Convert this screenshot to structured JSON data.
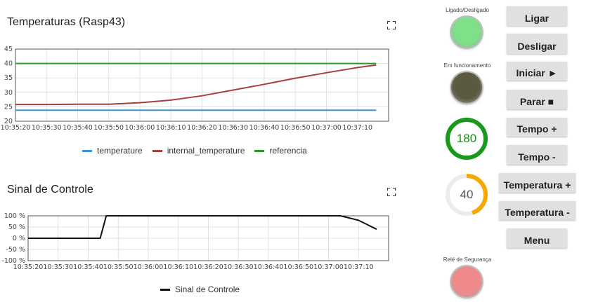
{
  "panel1": {
    "title": "Temperaturas (Rasp43)",
    "legend": [
      {
        "name": "temperature",
        "color": "#3b93d8"
      },
      {
        "name": "internal_temperature",
        "color": "#a84040"
      },
      {
        "name": "referencia",
        "color": "#2a9a2a"
      }
    ]
  },
  "panel2": {
    "title": "Sinal de Controle",
    "legend": [
      {
        "name": "Sinal de Controle",
        "color": "#111111"
      }
    ]
  },
  "chart_data": [
    {
      "type": "line",
      "title": "Temperaturas (Rasp43)",
      "xlabel": "",
      "ylabel": "",
      "ylim": [
        20,
        45
      ],
      "yticks": [
        "45",
        "40",
        "35",
        "30",
        "25",
        "20"
      ],
      "xticks": [
        "10:35:20",
        "10:35:30",
        "10:35:40",
        "10:35:50",
        "10:36:00",
        "10:36:10",
        "10:36:20",
        "10:36:30",
        "10:36:40",
        "10:36:50",
        "10:37:00",
        "10:37:10"
      ],
      "grid": true,
      "legend_position": "bottom",
      "x_seconds": [
        0,
        10,
        20,
        30,
        40,
        50,
        60,
        70,
        80,
        90,
        100,
        110,
        116
      ],
      "series": [
        {
          "name": "temperature",
          "color": "#3b93d8",
          "values": [
            23.8,
            23.8,
            23.8,
            23.8,
            23.8,
            23.8,
            23.8,
            23.8,
            23.8,
            23.8,
            23.8,
            23.8,
            23.8
          ]
        },
        {
          "name": "internal_temperature",
          "color": "#a84040",
          "values": [
            25.8,
            25.8,
            25.9,
            25.9,
            26.4,
            27.3,
            28.8,
            30.8,
            32.8,
            34.9,
            36.8,
            38.6,
            39.5
          ]
        },
        {
          "name": "referencia",
          "color": "#2a9a2a",
          "values": [
            40,
            40,
            40,
            40,
            40,
            40,
            40,
            40,
            40,
            40,
            40,
            40,
            40
          ]
        }
      ]
    },
    {
      "type": "line",
      "title": "Sinal de Controle",
      "xlabel": "",
      "ylabel": "",
      "ylim": [
        -100,
        100
      ],
      "yticks": [
        "100 %",
        "50 %",
        "0 %",
        "-50 %",
        "-100 %"
      ],
      "xticks": [
        "10:35:20",
        "10:35:30",
        "10:35:40",
        "10:35:50",
        "10:36:00",
        "10:36:10",
        "10:36:20",
        "10:36:30",
        "10:36:40",
        "10:36:50",
        "10:37:00",
        "10:37:10"
      ],
      "grid": true,
      "legend_position": "bottom",
      "x_seconds": [
        0,
        24,
        26,
        30,
        40,
        50,
        60,
        70,
        80,
        90,
        100,
        104,
        110,
        116
      ],
      "series": [
        {
          "name": "Sinal de Controle",
          "color": "#111111",
          "values": [
            0,
            0,
            100,
            100,
            100,
            100,
            100,
            100,
            100,
            100,
            100,
            100,
            80,
            40
          ]
        }
      ]
    }
  ],
  "controls": {
    "power_label": "Ligado/Desligado",
    "running_label": "Em funcionamento",
    "safety_label": "Relé de Segurança",
    "led_power_color": "#7fe08a",
    "led_running_color": "#5b5a40",
    "led_safety_color": "#f08a8a",
    "btn_ligar": "Ligar",
    "btn_desligar": "Desligar",
    "btn_iniciar": "Iniciar ►",
    "btn_parar": "Parar ■",
    "btn_tempo_mais": "Tempo +",
    "btn_tempo_menos": "Tempo -",
    "btn_temp_mais": "Temperatura +",
    "btn_temp_menos": "Temperatura -",
    "btn_menu": "Menu",
    "gauge_time": {
      "value": "180",
      "fraction": 1.0,
      "color": "#1a9a1a"
    },
    "gauge_temp": {
      "value": "40",
      "fraction": 0.45,
      "color": "#f6a800"
    }
  }
}
